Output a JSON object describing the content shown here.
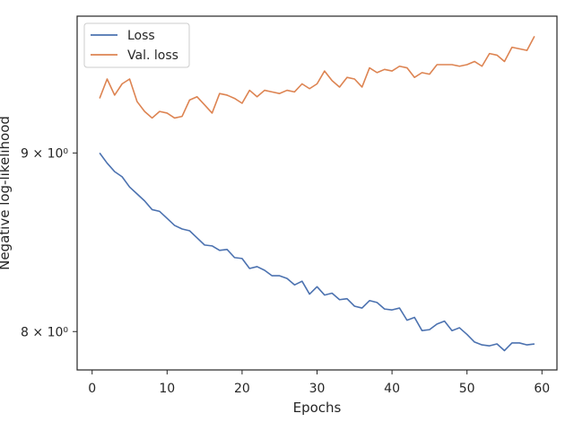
{
  "chart_data": {
    "type": "line",
    "xlabel": "Epochs",
    "ylabel": "Negative log-likelihood",
    "yscale": "log",
    "xlim": [
      -2,
      62
    ],
    "ylim": [
      7.8,
      9.85
    ],
    "xticks": [
      0,
      10,
      20,
      30,
      40,
      50,
      60
    ],
    "xtick_labels": [
      "0",
      "10",
      "20",
      "30",
      "40",
      "50",
      "60"
    ],
    "yticks": [
      8,
      9
    ],
    "ytick_labels": [
      "8 × 10⁰",
      "9 × 10⁰"
    ],
    "grid": false,
    "legend": {
      "position": "top-left",
      "entries": [
        "Loss",
        "Val. loss"
      ]
    },
    "series": [
      {
        "name": "Loss",
        "color": "#4c72b0",
        "x": [
          1,
          2,
          3,
          4,
          5,
          6,
          7,
          8,
          9,
          10,
          11,
          12,
          13,
          14,
          15,
          16,
          17,
          18,
          19,
          20,
          21,
          22,
          23,
          24,
          25,
          26,
          27,
          28,
          29,
          30,
          31,
          32,
          33,
          34,
          35,
          36,
          37,
          38,
          39,
          40,
          41,
          42,
          43,
          44,
          45,
          46,
          47,
          48,
          49,
          50,
          51,
          52,
          53,
          54,
          55,
          56,
          57,
          58,
          59
        ],
        "values": [
          9.0,
          8.94,
          8.89,
          8.86,
          8.8,
          8.76,
          8.72,
          8.67,
          8.66,
          8.62,
          8.58,
          8.56,
          8.55,
          8.51,
          8.47,
          8.465,
          8.44,
          8.445,
          8.4,
          8.395,
          8.34,
          8.35,
          8.33,
          8.3,
          8.3,
          8.285,
          8.25,
          8.27,
          8.2,
          8.24,
          8.195,
          8.205,
          8.17,
          8.175,
          8.135,
          8.125,
          8.165,
          8.155,
          8.12,
          8.115,
          8.125,
          8.06,
          8.075,
          8.005,
          8.01,
          8.04,
          8.055,
          8.005,
          8.02,
          7.985,
          7.945,
          7.93,
          7.925,
          7.935,
          7.9,
          7.94,
          7.94,
          7.93,
          7.935
        ]
      },
      {
        "name": "Val. loss",
        "color": "#dd8452",
        "x": [
          1,
          2,
          3,
          4,
          5,
          6,
          7,
          8,
          9,
          10,
          11,
          12,
          13,
          14,
          15,
          16,
          17,
          18,
          19,
          20,
          21,
          22,
          23,
          24,
          25,
          26,
          27,
          28,
          29,
          30,
          31,
          32,
          33,
          34,
          35,
          36,
          37,
          38,
          39,
          40,
          41,
          42,
          43,
          44,
          45,
          46,
          47,
          48,
          49,
          50,
          51,
          52,
          53,
          54,
          55,
          56,
          57,
          58,
          59
        ],
        "values": [
          9.33,
          9.45,
          9.35,
          9.42,
          9.45,
          9.31,
          9.25,
          9.21,
          9.25,
          9.24,
          9.21,
          9.22,
          9.32,
          9.34,
          9.29,
          9.24,
          9.36,
          9.35,
          9.33,
          9.3,
          9.38,
          9.34,
          9.38,
          9.37,
          9.36,
          9.38,
          9.37,
          9.42,
          9.39,
          9.42,
          9.5,
          9.44,
          9.4,
          9.46,
          9.45,
          9.4,
          9.52,
          9.49,
          9.51,
          9.5,
          9.53,
          9.52,
          9.46,
          9.49,
          9.48,
          9.54,
          9.54,
          9.54,
          9.53,
          9.54,
          9.56,
          9.53,
          9.61,
          9.6,
          9.56,
          9.65,
          9.64,
          9.63,
          9.72
        ]
      }
    ]
  }
}
